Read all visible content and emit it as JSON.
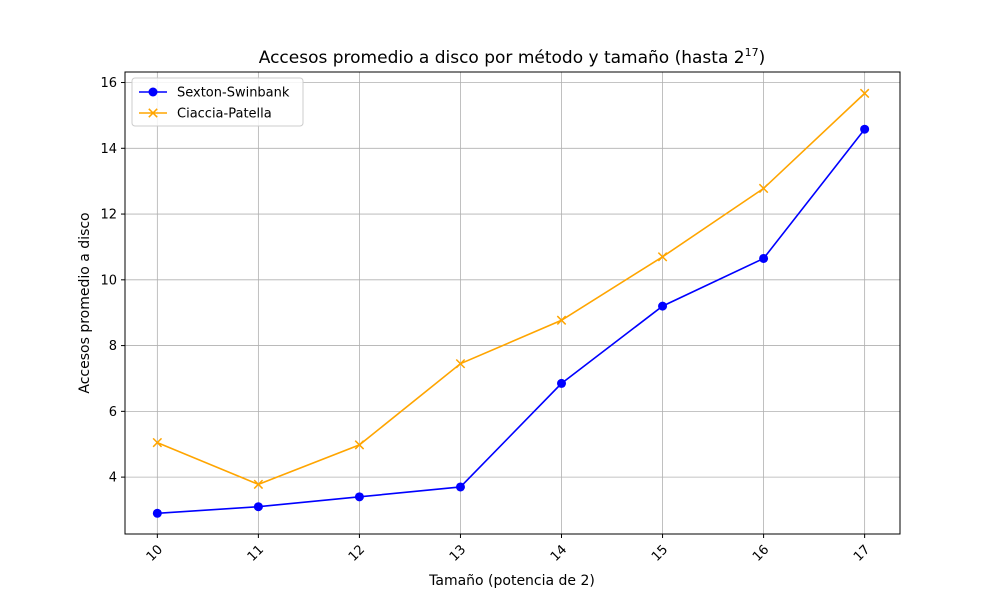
{
  "chart_data": {
    "type": "line",
    "title_main": "Accesos promedio a disco por método y tamaño (hasta 2",
    "title_exp": "17",
    "title_end": ")",
    "xlabel": "Tamaño (potencia de 2)",
    "ylabel": "Accesos promedio a disco",
    "x": [
      10,
      11,
      12,
      13,
      14,
      15,
      16,
      17
    ],
    "x_tick_labels": [
      "10",
      "11",
      "12",
      "13",
      "14",
      "15",
      "16",
      "17"
    ],
    "y_ticks": [
      4,
      6,
      8,
      10,
      12,
      14,
      16
    ],
    "y_tick_labels": [
      "4",
      "6",
      "8",
      "10",
      "12",
      "14",
      "16"
    ],
    "xlim": [
      9.68,
      17.35
    ],
    "ylim": [
      2.27,
      16.32
    ],
    "grid": true,
    "legend_position": "top-left",
    "series": [
      {
        "name": "Sexton-Swinbank",
        "color": "#0000ff",
        "marker": "circle",
        "values": [
          2.9,
          3.1,
          3.4,
          3.7,
          6.85,
          9.2,
          10.65,
          14.58
        ]
      },
      {
        "name": "Ciaccia-Patella",
        "color": "#ffa500",
        "marker": "x",
        "values": [
          5.05,
          3.78,
          4.98,
          7.45,
          8.77,
          10.7,
          12.78,
          15.67
        ]
      }
    ]
  }
}
